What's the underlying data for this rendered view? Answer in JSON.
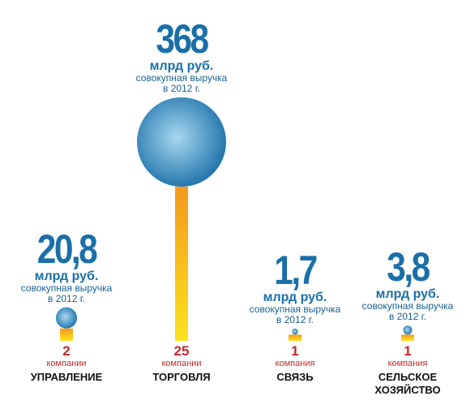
{
  "chart_data": {
    "type": "lollipop",
    "categories": [
      "УПРАВЛЕНИЕ",
      "ТОРГОВЛЯ",
      "СВЯЗЬ",
      "СЕЛЬСКОЕ ХОЗЯЙСТВО"
    ],
    "revenue": {
      "values": [
        20.8,
        368,
        1.7,
        3.8
      ],
      "value_labels": [
        "20,8",
        "368",
        "1,7",
        "3,8"
      ],
      "unit": "млрд руб.",
      "note": "совокупная выручка в 2012 г.",
      "color": "#1a6fa8"
    },
    "companies": {
      "values": [
        2,
        25,
        1,
        1
      ],
      "labels": [
        "компании",
        "компании",
        "компания",
        "компания"
      ],
      "color": "#f39a1c",
      "label_color": "#c0282d"
    }
  }
}
